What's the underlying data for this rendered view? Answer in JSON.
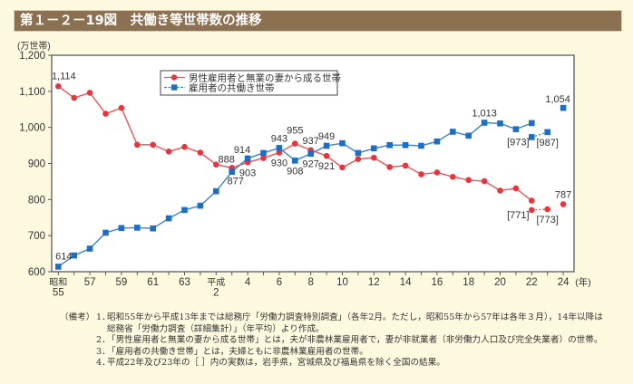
{
  "title": "第１－２－19図　共働き等世帯数の推移",
  "chart_data": {
    "type": "line",
    "title": "共働き等世帯数の推移",
    "ylabel": "(万世帯)",
    "xlabel": "(年)",
    "ylim": [
      600,
      1200
    ],
    "yticks": [
      600,
      700,
      800,
      900,
      1000,
      1100,
      1200
    ],
    "ytick_labels": [
      "600",
      "700",
      "800",
      "900",
      "1,000",
      "1,100",
      "1,200"
    ],
    "grid": false,
    "legend": "top-left-inside",
    "x": [
      "昭和55",
      "昭和56",
      "昭和57",
      "昭和58",
      "昭和59",
      "昭和60",
      "昭和61",
      "昭和62",
      "昭和63",
      "平成元",
      "平成2",
      "平成3",
      "平成4",
      "平成5",
      "平成6",
      "平成7",
      "平成8",
      "平成9",
      "平成10",
      "平成11",
      "平成12",
      "平成13",
      "平成14",
      "平成15",
      "平成16",
      "平成17",
      "平成18",
      "平成19",
      "平成20",
      "平成21",
      "平成22",
      "平成23",
      "平成24"
    ],
    "xticks": [
      {
        "x": "昭和55",
        "label": [
          "昭和",
          "55"
        ]
      },
      {
        "x": "昭和57",
        "label": [
          "57"
        ]
      },
      {
        "x": "昭和59",
        "label": [
          "59"
        ]
      },
      {
        "x": "昭和61",
        "label": [
          "61"
        ]
      },
      {
        "x": "昭和63",
        "label": [
          "63"
        ]
      },
      {
        "x": "平成2",
        "label": [
          "平成",
          "2"
        ]
      },
      {
        "x": "平成4",
        "label": [
          "4"
        ]
      },
      {
        "x": "平成6",
        "label": [
          "6"
        ]
      },
      {
        "x": "平成8",
        "label": [
          "8"
        ]
      },
      {
        "x": "平成10",
        "label": [
          "10"
        ]
      },
      {
        "x": "平成12",
        "label": [
          "12"
        ]
      },
      {
        "x": "平成14",
        "label": [
          "14"
        ]
      },
      {
        "x": "平成16",
        "label": [
          "16"
        ]
      },
      {
        "x": "平成18",
        "label": [
          "18"
        ]
      },
      {
        "x": "平成20",
        "label": [
          "20"
        ]
      },
      {
        "x": "平成22",
        "label": [
          "22"
        ]
      },
      {
        "x": "平成24",
        "label": [
          "24"
        ]
      }
    ],
    "series": [
      {
        "name": "男性雇用者と無業の妻から成る世帯",
        "color": "#e8343c",
        "line_color": "#ea5257",
        "marker": "circle",
        "values": [
          1114,
          1082,
          1096,
          1038,
          1054,
          952,
          952,
          933,
          946,
          930,
          897,
          888,
          903,
          915,
          930,
          955,
          937,
          921,
          889,
          912,
          916,
          890,
          894,
          870,
          875,
          863,
          854,
          851,
          825,
          831,
          797,
          null,
          787
        ],
        "bracket_values": [
          {
            "x": "平成22",
            "value": 771
          },
          {
            "x": "平成23",
            "value": 773
          }
        ]
      },
      {
        "name": "雇用者の共働き世帯",
        "color": "#1d6ec4",
        "line_color": "#3b82cc",
        "marker": "square",
        "values": [
          614,
          645,
          664,
          708,
          721,
          722,
          720,
          748,
          771,
          783,
          823,
          877,
          914,
          929,
          943,
          908,
          927,
          949,
          956,
          929,
          942,
          951,
          951,
          949,
          961,
          988,
          977,
          1013,
          1011,
          995,
          1012,
          null,
          1054
        ],
        "bracket_values": [
          {
            "x": "平成22",
            "value": 973
          },
          {
            "x": "平成23",
            "value": 987
          }
        ]
      }
    ],
    "data_labels": [
      {
        "series": 0,
        "x": "昭和55",
        "text": "1,114",
        "position": "above-right"
      },
      {
        "series": 0,
        "x": "平成3",
        "text": "888",
        "position": "above-left"
      },
      {
        "series": 0,
        "x": "平成4",
        "text": "903",
        "position": "below"
      },
      {
        "series": 0,
        "x": "平成6",
        "text": "930",
        "position": "below"
      },
      {
        "series": 0,
        "x": "平成7",
        "text": "955",
        "position": "above-high"
      },
      {
        "series": 0,
        "x": "平成8",
        "text": "937",
        "position": "above"
      },
      {
        "series": 0,
        "x": "平成9",
        "text": "921",
        "position": "below"
      },
      {
        "series": 0,
        "x": "平成22",
        "text": "[771]",
        "position": "below-left",
        "bracket": true
      },
      {
        "series": 0,
        "x": "平成23",
        "text": "[773]",
        "position": "below",
        "bracket": true
      },
      {
        "series": 0,
        "x": "平成24",
        "text": "787",
        "position": "above"
      },
      {
        "series": 1,
        "x": "昭和55",
        "text": "614",
        "position": "above-right"
      },
      {
        "series": 1,
        "x": "平成3",
        "text": "877",
        "position": "below-right"
      },
      {
        "series": 1,
        "x": "平成4",
        "text": "914",
        "position": "above-left"
      },
      {
        "series": 1,
        "x": "平成6",
        "text": "943",
        "position": "above"
      },
      {
        "series": 1,
        "x": "平成7",
        "text": "908",
        "position": "below"
      },
      {
        "series": 1,
        "x": "平成8",
        "text": "927",
        "position": "below"
      },
      {
        "series": 1,
        "x": "平成9",
        "text": "949",
        "position": "above"
      },
      {
        "series": 1,
        "x": "平成19",
        "text": "1,013",
        "position": "above"
      },
      {
        "series": 1,
        "x": "平成22",
        "text": "[973]",
        "position": "below-left",
        "bracket": true
      },
      {
        "series": 1,
        "x": "平成23",
        "text": "[987]",
        "position": "below",
        "bracket": true
      },
      {
        "series": 1,
        "x": "平成24",
        "text": "1,054",
        "position": "above-left"
      }
    ]
  },
  "notes": {
    "label": "（備考）",
    "items": [
      {
        "num": "1．",
        "lines": [
          "昭和55年から平成13年までは総務庁「労働力調査特別調査」（各年2月。ただし，昭和55年から57年は各年３月），14年以降は",
          "総務省「労働力調査（詳細集計）」（年平均）より作成。"
        ]
      },
      {
        "num": "2．",
        "lines": [
          "「男性雇用者と無業の妻から成る世帯」とは，夫が非農林業雇用者で，妻が非就業者（非労働力人口及び完全失業者）の世帯。"
        ]
      },
      {
        "num": "3．",
        "lines": [
          "「雇用者の共働き世帯」とは，夫婦ともに非農林業雇用者の世帯。"
        ]
      },
      {
        "num": "4．",
        "lines": [
          "平成22年及び23年の［ ］内の実数は，岩手県，宮城県及び福島県を除く全国の結果。"
        ]
      }
    ]
  }
}
